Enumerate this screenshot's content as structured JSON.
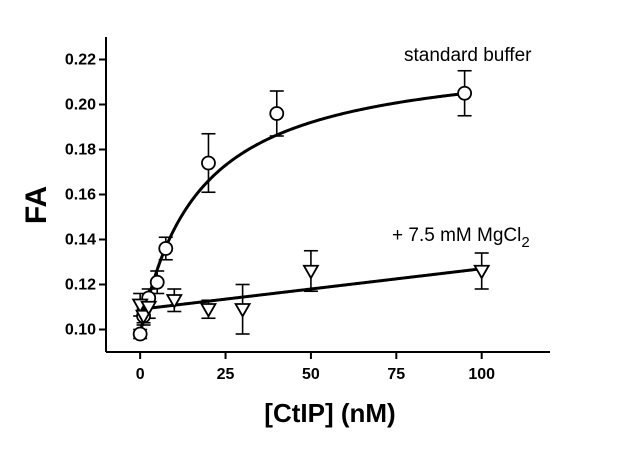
{
  "chart_data": {
    "type": "scatter",
    "xlabel": "[CtIP] (nM)",
    "ylabel": "FA",
    "xlim": [
      -10,
      120
    ],
    "ylim": [
      0.09,
      0.23
    ],
    "x_ticks": [
      0,
      25,
      50,
      75,
      100
    ],
    "y_ticks": [
      0.1,
      0.12,
      0.14,
      0.16,
      0.18,
      0.2,
      0.22
    ],
    "annotations": [
      {
        "text": "standard buffer",
        "series": "standard"
      },
      {
        "text": "+ 7.5 mM MgCl",
        "subscript": "2",
        "series": "mgcl2"
      }
    ],
    "series": [
      {
        "id": "standard",
        "marker": "circle",
        "points": [
          {
            "x": 0,
            "y": 0.098,
            "err": 0.002
          },
          {
            "x": 1,
            "y": 0.106,
            "err": 0.003
          },
          {
            "x": 2.5,
            "y": 0.114,
            "err": 0.004
          },
          {
            "x": 5,
            "y": 0.121,
            "err": 0.005
          },
          {
            "x": 7.5,
            "y": 0.136,
            "err": 0.005
          },
          {
            "x": 20,
            "y": 0.174,
            "err": 0.013
          },
          {
            "x": 40,
            "y": 0.196,
            "err": 0.01
          },
          {
            "x": 95,
            "y": 0.205,
            "err": 0.01
          }
        ],
        "fit": {
          "model": "hyperbolic",
          "y0": 0.098,
          "bmax": 0.126,
          "kd": 17
        }
      },
      {
        "id": "mgcl2",
        "marker": "triangle-down",
        "points": [
          {
            "x": 0,
            "y": 0.111,
            "err": 0.005
          },
          {
            "x": 1,
            "y": 0.106,
            "err": 0.004
          },
          {
            "x": 2.5,
            "y": 0.11,
            "err": 0.005
          },
          {
            "x": 10,
            "y": 0.113,
            "err": 0.005
          },
          {
            "x": 20,
            "y": 0.109,
            "err": 0.004
          },
          {
            "x": 30,
            "y": 0.109,
            "err": 0.011
          },
          {
            "x": 50,
            "y": 0.126,
            "err": 0.009
          },
          {
            "x": 100,
            "y": 0.126,
            "err": 0.008
          }
        ],
        "fit": {
          "model": "linear",
          "intercept": 0.109,
          "slope": 0.00018
        }
      }
    ]
  }
}
